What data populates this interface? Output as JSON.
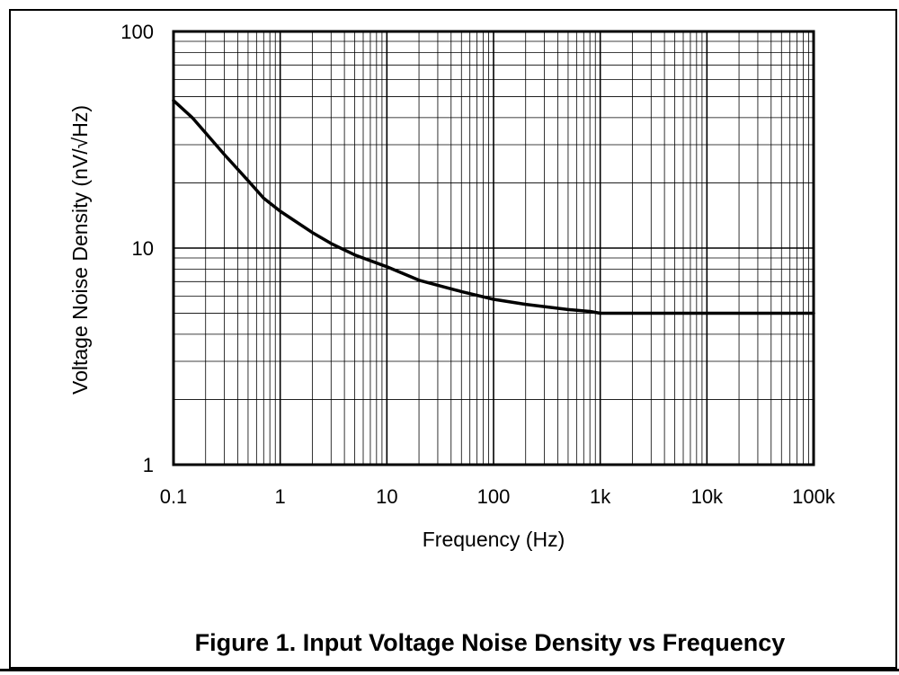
{
  "figure": {
    "caption": "Figure 1. Input Voltage Noise Density vs Frequency"
  },
  "chart_data": {
    "type": "line",
    "title": "",
    "xlabel": "Frequency (Hz)",
    "ylabel": "Voltage Noise Density (nV/√Hz)",
    "xscale": "log",
    "yscale": "log",
    "xlim": [
      0.1,
      100000
    ],
    "ylim": [
      1,
      100
    ],
    "grid": true,
    "x_tick_labels": [
      "0.1",
      "1",
      "10",
      "100",
      "1k",
      "10k",
      "100k"
    ],
    "y_tick_labels": [
      "1",
      "10",
      "100"
    ],
    "series": [
      {
        "x": [
          0.1,
          0.15,
          0.2,
          0.3,
          0.5,
          0.7,
          1,
          2,
          3,
          5,
          10,
          20,
          50,
          100,
          200,
          500,
          800,
          1000,
          10000,
          100000
        ],
        "y": [
          48,
          40,
          34,
          27,
          20.5,
          17,
          14.8,
          11.8,
          10.5,
          9.3,
          8.2,
          7.1,
          6.3,
          5.8,
          5.5,
          5.2,
          5.1,
          5.0,
          5.0,
          5.0
        ],
        "color": "#000000"
      }
    ]
  }
}
